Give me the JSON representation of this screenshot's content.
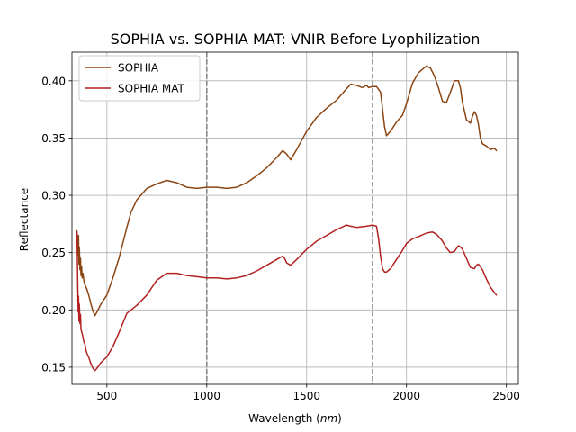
{
  "chart_data": {
    "type": "line",
    "title": "SOPHIA vs. SOPHIA MAT: VNIR Before Lyophilization",
    "xlabel_prefix": "Wavelength (",
    "xlabel_unit": "nm",
    "xlabel_suffix": ")",
    "ylabel": "Reflectance",
    "xlim": [
      325,
      2560
    ],
    "ylim": [
      0.135,
      0.425
    ],
    "xticks": [
      500,
      1000,
      1500,
      2000,
      2500
    ],
    "xtick_labels": [
      "500",
      "1000",
      "1500",
      "2000",
      "2500"
    ],
    "yticks": [
      0.15,
      0.2,
      0.25,
      0.3,
      0.35,
      0.4
    ],
    "ytick_labels": [
      "0.15",
      "0.20",
      "0.25",
      "0.30",
      "0.35",
      "0.40"
    ],
    "grid": true,
    "legend_position": "top-left",
    "vlines": [
      1000,
      1830
    ],
    "series": [
      {
        "name": "SOPHIA",
        "color": "#8B4513",
        "x": [
          350,
          352,
          355,
          358,
          360,
          362,
          365,
          368,
          370,
          373,
          376,
          380,
          385,
          390,
          395,
          400,
          410,
          420,
          430,
          440,
          450,
          470,
          500,
          530,
          560,
          600,
          620,
          650,
          700,
          750,
          800,
          850,
          900,
          950,
          1000,
          1050,
          1100,
          1150,
          1200,
          1250,
          1300,
          1350,
          1380,
          1400,
          1420,
          1450,
          1500,
          1550,
          1600,
          1650,
          1700,
          1720,
          1750,
          1780,
          1800,
          1810,
          1830,
          1850,
          1870,
          1880,
          1890,
          1900,
          1920,
          1950,
          1980,
          2000,
          2030,
          2060,
          2080,
          2100,
          2120,
          2140,
          2160,
          2180,
          2200,
          2220,
          2240,
          2260,
          2270,
          2280,
          2300,
          2320,
          2330,
          2340,
          2350,
          2360,
          2370,
          2380,
          2400,
          2420,
          2440,
          2450
        ],
        "y": [
          0.269,
          0.262,
          0.248,
          0.265,
          0.24,
          0.255,
          0.235,
          0.245,
          0.23,
          0.238,
          0.228,
          0.232,
          0.225,
          0.222,
          0.22,
          0.218,
          0.212,
          0.205,
          0.199,
          0.195,
          0.198,
          0.205,
          0.213,
          0.228,
          0.245,
          0.272,
          0.285,
          0.296,
          0.306,
          0.31,
          0.313,
          0.311,
          0.307,
          0.306,
          0.307,
          0.307,
          0.306,
          0.307,
          0.311,
          0.317,
          0.324,
          0.333,
          0.339,
          0.336,
          0.331,
          0.34,
          0.356,
          0.368,
          0.376,
          0.383,
          0.393,
          0.397,
          0.396,
          0.394,
          0.396,
          0.394,
          0.395,
          0.395,
          0.39,
          0.375,
          0.36,
          0.352,
          0.356,
          0.364,
          0.37,
          0.38,
          0.398,
          0.407,
          0.41,
          0.413,
          0.411,
          0.404,
          0.394,
          0.382,
          0.381,
          0.39,
          0.4,
          0.4,
          0.394,
          0.381,
          0.366,
          0.363,
          0.369,
          0.373,
          0.37,
          0.362,
          0.35,
          0.345,
          0.343,
          0.34,
          0.341,
          0.339
        ]
      },
      {
        "name": "SOPHIA MAT",
        "color": "#B22222",
        "x": [
          350,
          352,
          354,
          356,
          358,
          360,
          362,
          365,
          368,
          370,
          375,
          380,
          385,
          390,
          395,
          400,
          410,
          420,
          430,
          440,
          450,
          470,
          500,
          530,
          560,
          600,
          650,
          700,
          750,
          800,
          850,
          900,
          950,
          1000,
          1050,
          1100,
          1150,
          1200,
          1250,
          1300,
          1350,
          1380,
          1390,
          1400,
          1420,
          1450,
          1500,
          1550,
          1600,
          1650,
          1700,
          1720,
          1750,
          1800,
          1830,
          1850,
          1860,
          1870,
          1880,
          1890,
          1900,
          1920,
          1950,
          1980,
          2000,
          2030,
          2060,
          2100,
          2130,
          2150,
          2180,
          2200,
          2220,
          2240,
          2260,
          2270,
          2280,
          2300,
          2320,
          2340,
          2350,
          2360,
          2380,
          2400,
          2420,
          2440,
          2450
        ],
        "y": [
          0.268,
          0.245,
          0.222,
          0.198,
          0.212,
          0.19,
          0.205,
          0.188,
          0.196,
          0.183,
          0.18,
          0.176,
          0.172,
          0.17,
          0.165,
          0.162,
          0.158,
          0.153,
          0.149,
          0.147,
          0.149,
          0.154,
          0.159,
          0.168,
          0.18,
          0.197,
          0.204,
          0.213,
          0.226,
          0.232,
          0.232,
          0.23,
          0.229,
          0.228,
          0.228,
          0.227,
          0.228,
          0.23,
          0.234,
          0.239,
          0.244,
          0.247,
          0.245,
          0.241,
          0.239,
          0.244,
          0.253,
          0.26,
          0.265,
          0.27,
          0.274,
          0.273,
          0.272,
          0.273,
          0.274,
          0.273,
          0.262,
          0.247,
          0.236,
          0.233,
          0.233,
          0.236,
          0.244,
          0.252,
          0.258,
          0.262,
          0.264,
          0.267,
          0.268,
          0.266,
          0.26,
          0.254,
          0.25,
          0.251,
          0.256,
          0.255,
          0.253,
          0.245,
          0.237,
          0.236,
          0.239,
          0.24,
          0.235,
          0.227,
          0.22,
          0.215,
          0.213
        ]
      }
    ]
  }
}
